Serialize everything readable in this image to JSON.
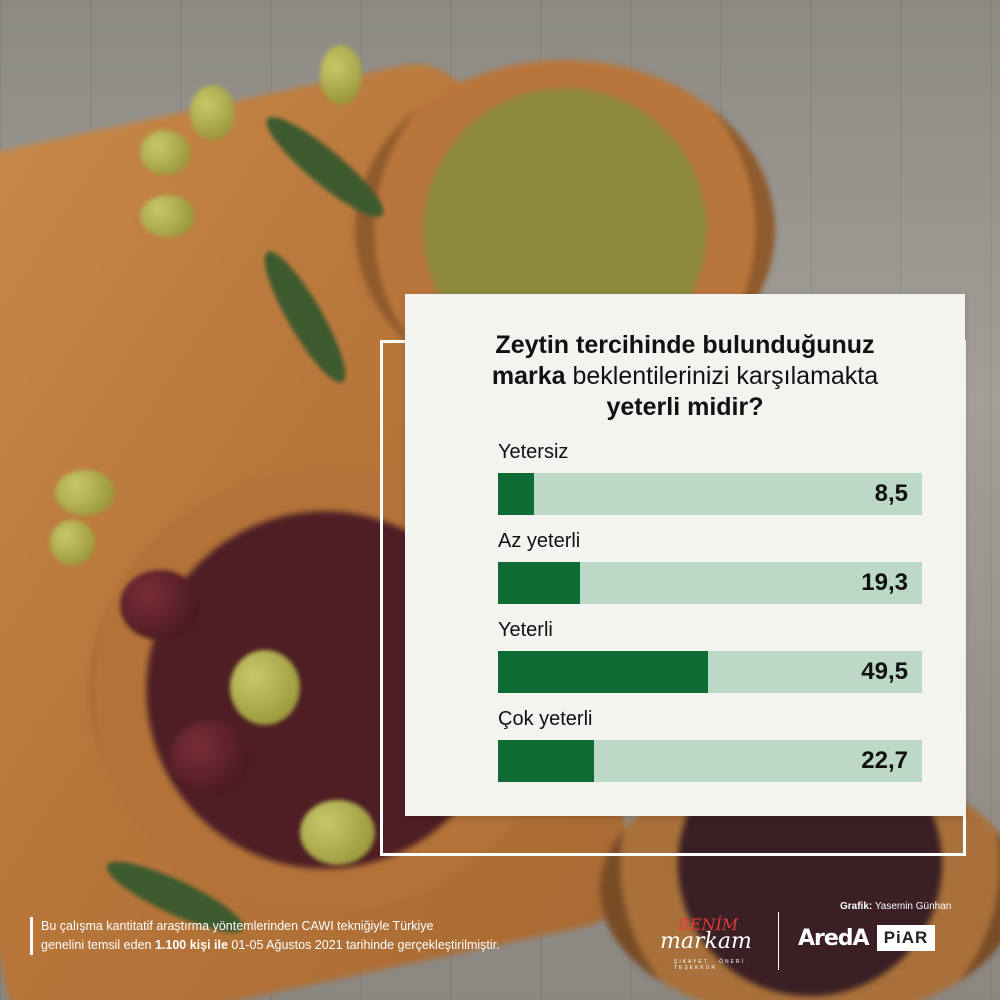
{
  "title": {
    "part1": "Zeytin tercihinde bulunduğunuz",
    "part2_bold": "marka",
    "part2_regular": "beklentilerinizi karşılamakta",
    "part3": "yeterli midir?"
  },
  "chart_data": {
    "type": "bar",
    "orientation": "horizontal",
    "categories": [
      "Yetersiz",
      "Az yeterli",
      "Yeterli",
      "Çok yeterli"
    ],
    "values": [
      8.5,
      19.3,
      49.5,
      22.7
    ],
    "value_labels": [
      "8,5",
      "19,3",
      "49,5",
      "22,7"
    ],
    "xlim": [
      0,
      100
    ],
    "bar_color": "#0e6b33",
    "track_color": "#bcd9c8"
  },
  "footnote": {
    "text1": "Bu çalışma kantitatif araştırma yöntemlerinden CAWI tekniğiyle Türkiye",
    "text2a": "genelini temsil eden ",
    "text2b": "1.100 kişi ile",
    "text2c": " 01-05 Ağustos 2021 tarihinde gerçekleştirilmiştir."
  },
  "credit": {
    "label": "Grafik:",
    "name": " Yasemin Günhan"
  },
  "logos": {
    "benim_top": "BENİM",
    "benim_main": "markam",
    "benim_tag": "ŞİKAYET · ÖNERİ · TEŞEKKÜR",
    "areda": "AredA",
    "piar": "PiAR"
  }
}
